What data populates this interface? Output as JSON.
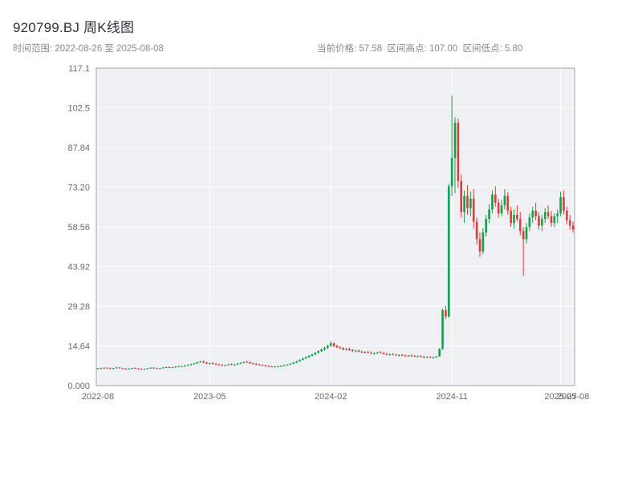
{
  "header": {
    "title": "920799.BJ 周K线图",
    "subtitle_left": "时间范围: 2022-08-26 至 2025-08-08",
    "subtitle_right": "当前价格: 57.58  区间高点: 107.00  区间低点: 5.80"
  },
  "chart_data": {
    "type": "candlestick",
    "title": "920799.BJ 周K线图",
    "symbol": "920799.BJ",
    "interval": "weekly",
    "date_range": {
      "start": "2022-08-26",
      "end": "2025-08-08"
    },
    "current_price": 57.58,
    "range_high": 107.0,
    "range_low": 5.8,
    "ylim": [
      0,
      117.12
    ],
    "grid": true,
    "colors": {
      "up": "#16a04c",
      "down": "#e03c3c",
      "plot_bg": "#eef0f3",
      "grid": "#ffffff",
      "axis": "#9ca1a8"
    },
    "y_ticks": [
      {
        "value": 0,
        "label": "0.000"
      },
      {
        "value": 14.64,
        "label": "14.64"
      },
      {
        "value": 29.28,
        "label": "29.28"
      },
      {
        "value": 43.92,
        "label": "43.92"
      },
      {
        "value": 58.56,
        "label": "58.56"
      },
      {
        "value": 73.2,
        "label": "73.20"
      },
      {
        "value": 87.84,
        "label": "87.84"
      },
      {
        "value": 102.48,
        "label": "102.5"
      },
      {
        "value": 117.12,
        "label": "117.1"
      }
    ],
    "x_ticks": [
      {
        "index": 0,
        "label": "2022-08"
      },
      {
        "index": 36,
        "label": "2023-05"
      },
      {
        "index": 75,
        "label": "2024-02"
      },
      {
        "index": 114,
        "label": "2024-11"
      },
      {
        "index": 149,
        "label": "2025-07"
      },
      {
        "index": 153,
        "label": "2025-08"
      }
    ],
    "candles": [
      [
        6.2,
        6.5,
        6.0,
        6.4
      ],
      [
        6.4,
        6.6,
        6.2,
        6.3
      ],
      [
        6.3,
        6.7,
        6.1,
        6.6
      ],
      [
        6.6,
        6.8,
        6.3,
        6.4
      ],
      [
        6.4,
        6.6,
        6.1,
        6.2
      ],
      [
        6.2,
        6.5,
        6.0,
        6.5
      ],
      [
        6.5,
        6.9,
        6.4,
        6.7
      ],
      [
        6.7,
        6.8,
        6.3,
        6.4
      ],
      [
        6.4,
        6.6,
        6.2,
        6.3
      ],
      [
        6.3,
        6.5,
        6.0,
        6.1
      ],
      [
        6.1,
        6.4,
        5.9,
        6.3
      ],
      [
        6.3,
        6.6,
        6.1,
        6.5
      ],
      [
        6.5,
        6.7,
        6.2,
        6.3
      ],
      [
        6.3,
        6.5,
        6.0,
        6.2
      ],
      [
        6.2,
        6.4,
        5.9,
        6.0
      ],
      [
        6.0,
        6.3,
        5.8,
        6.2
      ],
      [
        6.2,
        6.5,
        6.0,
        6.4
      ],
      [
        6.4,
        6.7,
        6.2,
        6.6
      ],
      [
        6.6,
        6.8,
        6.3,
        6.4
      ],
      [
        6.4,
        6.6,
        6.1,
        6.2
      ],
      [
        6.2,
        6.5,
        6.0,
        6.4
      ],
      [
        6.4,
        6.8,
        6.3,
        6.7
      ],
      [
        6.7,
        7.0,
        6.5,
        6.8
      ],
      [
        6.8,
        7.1,
        6.5,
        6.6
      ],
      [
        6.6,
        6.9,
        6.4,
        6.8
      ],
      [
        6.8,
        7.2,
        6.6,
        7.0
      ],
      [
        7.0,
        7.3,
        6.8,
        7.1
      ],
      [
        7.1,
        7.4,
        6.9,
        7.2
      ],
      [
        7.2,
        7.6,
        7.0,
        7.4
      ],
      [
        7.4,
        7.8,
        7.2,
        7.6
      ],
      [
        7.6,
        8.1,
        7.4,
        7.9
      ],
      [
        7.9,
        8.4,
        7.7,
        8.2
      ],
      [
        8.2,
        8.8,
        8.0,
        8.6
      ],
      [
        8.6,
        9.2,
        8.4,
        8.9
      ],
      [
        8.9,
        9.3,
        8.3,
        8.5
      ],
      [
        8.5,
        8.8,
        7.9,
        8.1
      ],
      [
        8.1,
        8.5,
        7.8,
        8.3
      ],
      [
        8.3,
        8.6,
        7.8,
        8.0
      ],
      [
        8.0,
        8.3,
        7.6,
        7.8
      ],
      [
        7.8,
        8.1,
        7.4,
        7.6
      ],
      [
        7.6,
        7.9,
        7.2,
        7.4
      ],
      [
        7.4,
        7.7,
        7.1,
        7.6
      ],
      [
        7.6,
        8.0,
        7.4,
        7.9
      ],
      [
        7.9,
        8.2,
        7.5,
        7.7
      ],
      [
        7.7,
        8.0,
        7.4,
        7.8
      ],
      [
        7.8,
        8.3,
        7.6,
        8.1
      ],
      [
        8.1,
        8.6,
        7.9,
        8.4
      ],
      [
        8.4,
        8.9,
        8.2,
        8.7
      ],
      [
        8.7,
        9.2,
        8.4,
        8.6
      ],
      [
        8.6,
        8.9,
        8.0,
        8.2
      ],
      [
        8.2,
        8.5,
        7.8,
        8.0
      ],
      [
        8.0,
        8.3,
        7.6,
        7.8
      ],
      [
        7.8,
        8.1,
        7.4,
        7.6
      ],
      [
        7.6,
        7.9,
        7.2,
        7.4
      ],
      [
        7.4,
        7.7,
        7.0,
        7.2
      ],
      [
        7.2,
        7.5,
        6.9,
        7.1
      ],
      [
        7.1,
        7.3,
        6.8,
        6.9
      ],
      [
        6.9,
        7.2,
        6.7,
        7.0
      ],
      [
        7.0,
        7.3,
        6.8,
        7.1
      ],
      [
        7.1,
        7.5,
        6.9,
        7.3
      ],
      [
        7.3,
        7.7,
        7.1,
        7.5
      ],
      [
        7.5,
        7.9,
        7.3,
        7.8
      ],
      [
        7.8,
        8.3,
        7.6,
        8.1
      ],
      [
        8.1,
        8.7,
        7.9,
        8.5
      ],
      [
        8.5,
        9.2,
        8.3,
        9.0
      ],
      [
        9.0,
        9.7,
        8.8,
        9.5
      ],
      [
        9.5,
        10.3,
        9.3,
        10.0
      ],
      [
        10.0,
        10.8,
        9.7,
        10.5
      ],
      [
        10.5,
        11.3,
        10.2,
        11.0
      ],
      [
        11.0,
        11.8,
        10.7,
        11.5
      ],
      [
        11.5,
        12.4,
        11.2,
        12.1
      ],
      [
        12.1,
        13.0,
        11.8,
        12.7
      ],
      [
        12.7,
        13.7,
        12.4,
        13.4
      ],
      [
        13.4,
        14.3,
        12.9,
        13.9
      ],
      [
        13.9,
        15.1,
        13.5,
        14.7
      ],
      [
        14.7,
        16.3,
        14.3,
        15.6
      ],
      [
        15.6,
        15.9,
        14.2,
        14.6
      ],
      [
        14.6,
        15.1,
        13.8,
        14.1
      ],
      [
        14.1,
        14.6,
        13.4,
        13.8
      ],
      [
        13.8,
        14.2,
        13.0,
        13.3
      ],
      [
        13.3,
        13.9,
        12.9,
        13.6
      ],
      [
        13.6,
        14.0,
        12.8,
        13.1
      ],
      [
        13.1,
        13.5,
        12.4,
        12.7
      ],
      [
        12.7,
        13.2,
        12.2,
        12.9
      ],
      [
        12.9,
        13.3,
        12.3,
        12.5
      ],
      [
        12.5,
        12.9,
        11.9,
        12.2
      ],
      [
        12.2,
        12.7,
        11.8,
        12.4
      ],
      [
        12.4,
        12.8,
        11.9,
        12.1
      ],
      [
        12.1,
        12.5,
        11.6,
        11.8
      ],
      [
        11.8,
        12.3,
        11.4,
        12.0
      ],
      [
        12.0,
        12.5,
        11.6,
        12.3
      ],
      [
        12.3,
        12.8,
        11.9,
        12.1
      ],
      [
        12.1,
        12.4,
        11.5,
        11.7
      ],
      [
        11.7,
        12.1,
        11.2,
        11.4
      ],
      [
        11.4,
        11.8,
        11.0,
        11.6
      ],
      [
        11.6,
        12.0,
        11.2,
        11.4
      ],
      [
        11.4,
        11.7,
        10.9,
        11.1
      ],
      [
        11.1,
        11.5,
        10.8,
        11.3
      ],
      [
        11.3,
        11.6,
        10.9,
        11.1
      ],
      [
        11.1,
        11.4,
        10.7,
        10.9
      ],
      [
        10.9,
        11.3,
        10.6,
        11.1
      ],
      [
        11.1,
        11.5,
        10.8,
        11.0
      ],
      [
        11.0,
        11.3,
        10.5,
        10.7
      ],
      [
        10.7,
        11.1,
        10.4,
        10.9
      ],
      [
        10.9,
        11.2,
        10.5,
        10.6
      ],
      [
        10.6,
        11.0,
        10.2,
        10.4
      ],
      [
        10.4,
        10.8,
        10.1,
        10.6
      ],
      [
        10.6,
        10.9,
        10.2,
        10.3
      ],
      [
        10.3,
        10.7,
        10.0,
        10.5
      ],
      [
        10.5,
        11.0,
        10.2,
        10.8
      ],
      [
        10.8,
        13.8,
        10.6,
        13.5
      ],
      [
        13.5,
        28.5,
        13.2,
        27.8
      ],
      [
        27.8,
        29.5,
        24.5,
        25.5
      ],
      [
        25.5,
        74.5,
        25.0,
        73.5
      ],
      [
        73.5,
        107.0,
        70.0,
        84.0
      ],
      [
        84.0,
        99.0,
        71.0,
        97.0
      ],
      [
        97.0,
        98.5,
        73.0,
        75.5
      ],
      [
        75.5,
        78.0,
        62.0,
        64.0
      ],
      [
        64.0,
        72.0,
        60.0,
        70.0
      ],
      [
        70.0,
        74.0,
        63.0,
        65.5
      ],
      [
        65.5,
        71.5,
        62.5,
        69.0
      ],
      [
        69.0,
        72.5,
        58.0,
        60.5
      ],
      [
        60.5,
        62.0,
        52.0,
        54.0
      ],
      [
        54.0,
        56.5,
        47.5,
        49.5
      ],
      [
        49.5,
        58.0,
        48.5,
        56.5
      ],
      [
        56.5,
        63.0,
        55.0,
        61.5
      ],
      [
        61.5,
        67.0,
        60.0,
        65.0
      ],
      [
        65.0,
        72.0,
        63.5,
        70.5
      ],
      [
        70.5,
        73.5,
        66.0,
        67.5
      ],
      [
        67.5,
        69.0,
        62.0,
        63.5
      ],
      [
        63.5,
        68.5,
        62.5,
        66.5
      ],
      [
        66.5,
        72.5,
        65.0,
        70.0
      ],
      [
        70.0,
        71.5,
        63.0,
        64.5
      ],
      [
        64.5,
        66.0,
        58.5,
        60.0
      ],
      [
        60.0,
        65.0,
        58.0,
        63.0
      ],
      [
        63.0,
        66.5,
        60.5,
        61.5
      ],
      [
        61.5,
        64.0,
        55.5,
        57.0
      ],
      [
        57.0,
        58.5,
        40.5,
        54.0
      ],
      [
        54.0,
        60.0,
        52.5,
        58.5
      ],
      [
        58.5,
        63.5,
        57.0,
        62.0
      ],
      [
        62.0,
        66.0,
        60.0,
        64.5
      ],
      [
        64.5,
        67.5,
        61.0,
        62.5
      ],
      [
        62.5,
        64.0,
        57.5,
        59.0
      ],
      [
        59.0,
        63.0,
        57.0,
        61.5
      ],
      [
        61.5,
        65.5,
        60.0,
        64.0
      ],
      [
        64.0,
        66.5,
        61.5,
        62.5
      ],
      [
        62.5,
        64.5,
        58.5,
        60.0
      ],
      [
        60.0,
        63.5,
        58.5,
        62.5
      ],
      [
        62.5,
        65.0,
        60.0,
        63.5
      ],
      [
        63.5,
        71.5,
        62.5,
        69.5
      ],
      [
        69.5,
        72.0,
        63.0,
        64.5
      ],
      [
        64.5,
        66.0,
        59.5,
        61.0
      ],
      [
        61.0,
        63.0,
        57.5,
        59.0
      ],
      [
        59.0,
        60.5,
        56.5,
        57.58
      ]
    ]
  }
}
